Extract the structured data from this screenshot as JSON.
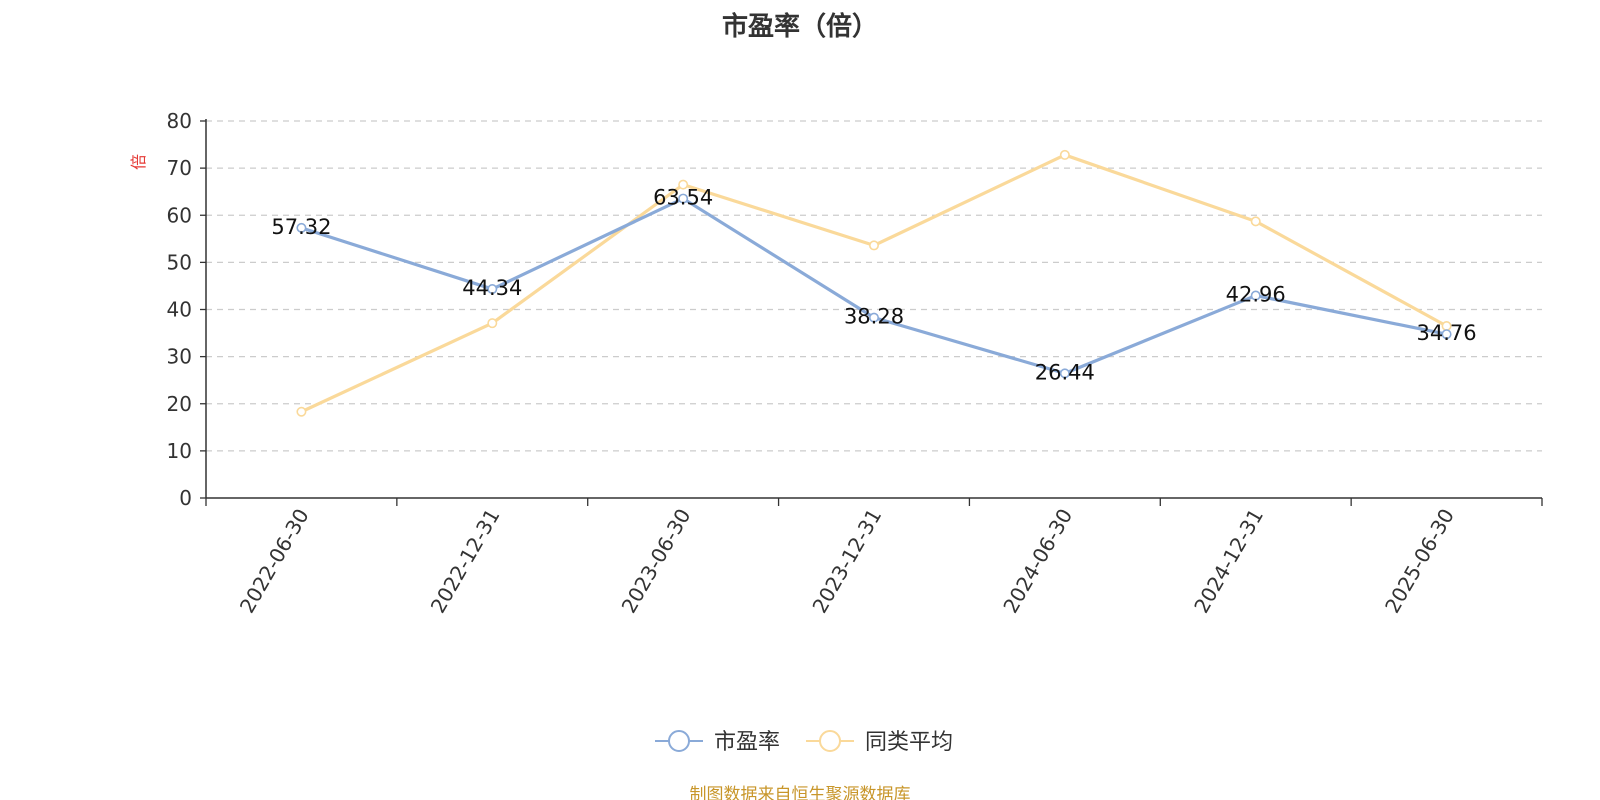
{
  "chart_data": {
    "type": "line",
    "title": "市盈率（倍）",
    "ylabel": "倍",
    "ylim": [
      0,
      80
    ],
    "yticks": [
      0,
      10,
      20,
      30,
      40,
      50,
      60,
      70,
      80
    ],
    "grid": true,
    "legend_position": "bottom-center",
    "categories": [
      "2022-06-30",
      "2022-12-31",
      "2023-06-30",
      "2023-12-31",
      "2024-06-30",
      "2024-12-31",
      "2025-06-30"
    ],
    "series": [
      {
        "name": "市盈率",
        "color": "#8aaad8",
        "values": [
          57.32,
          44.34,
          63.54,
          38.28,
          26.44,
          42.96,
          34.76
        ],
        "data_labels": [
          "57.32",
          "44.34",
          "63.54",
          "38.28",
          "26.44",
          "42.96",
          "34.76"
        ]
      },
      {
        "name": "同类平均",
        "color": "#fad99a",
        "values": [
          18.3,
          37.1,
          66.5,
          53.6,
          72.8,
          58.7,
          36.5
        ]
      }
    ]
  },
  "footer": {
    "source": "制图数据来自恒生聚源数据库"
  }
}
